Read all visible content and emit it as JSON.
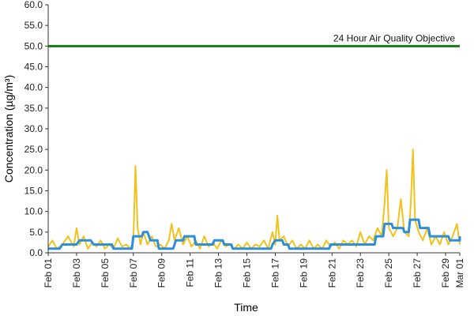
{
  "chart_data": {
    "type": "line",
    "title": "",
    "xlabel": "Time",
    "ylabel": "Concentration (µg/m³)",
    "ylim": [
      0,
      60
    ],
    "yticks": [
      "0.0",
      "5.0",
      "10.0",
      "15.0",
      "20.0",
      "25.0",
      "30.0",
      "35.0",
      "40.0",
      "45.0",
      "50.0",
      "55.0",
      "60.0"
    ],
    "xticks": [
      "Feb 01",
      "Feb 03",
      "Feb 05",
      "Feb 07",
      "Feb 09",
      "Feb 11",
      "Feb 13",
      "Feb 15",
      "Feb 17",
      "Feb 19",
      "Feb 21",
      "Feb 23",
      "Feb 25",
      "Feb 27",
      "Feb 29",
      "Mar 01"
    ],
    "x_day_range": [
      1,
      30
    ],
    "grid": false,
    "reference_line": {
      "label": "24 Hour Air Quality Objective",
      "value": 50,
      "color": "#1a7a1a"
    },
    "series": [
      {
        "color": "#f2c21b",
        "points": [
          [
            1,
            1.5
          ],
          [
            1.3,
            3
          ],
          [
            1.6,
            1
          ],
          [
            2,
            2
          ],
          [
            2.4,
            4
          ],
          [
            2.8,
            1.5
          ],
          [
            3,
            6
          ],
          [
            3.2,
            2
          ],
          [
            3.5,
            4
          ],
          [
            3.8,
            1
          ],
          [
            4.1,
            2.5
          ],
          [
            4.4,
            1.5
          ],
          [
            4.7,
            3
          ],
          [
            5,
            1
          ],
          [
            5.3,
            2
          ],
          [
            5.6,
            1
          ],
          [
            5.9,
            3.5
          ],
          [
            6.2,
            1.5
          ],
          [
            6.5,
            2
          ],
          [
            6.8,
            1
          ],
          [
            7,
            3
          ],
          [
            7.15,
            21
          ],
          [
            7.3,
            6
          ],
          [
            7.5,
            2
          ],
          [
            7.7,
            5
          ],
          [
            8,
            2
          ],
          [
            8.3,
            4
          ],
          [
            8.6,
            1.5
          ],
          [
            8.9,
            2
          ],
          [
            9.2,
            1
          ],
          [
            9.5,
            3
          ],
          [
            9.7,
            7
          ],
          [
            9.9,
            3
          ],
          [
            10.2,
            6
          ],
          [
            10.5,
            2
          ],
          [
            10.8,
            4
          ],
          [
            11.1,
            1.5
          ],
          [
            11.4,
            3
          ],
          [
            11.7,
            1
          ],
          [
            12,
            4
          ],
          [
            12.3,
            1.5
          ],
          [
            12.6,
            2.5
          ],
          [
            12.9,
            1
          ],
          [
            13.2,
            3
          ],
          [
            13.5,
            1.5
          ],
          [
            13.8,
            2
          ],
          [
            14.1,
            1
          ],
          [
            14.4,
            2
          ],
          [
            14.7,
            1
          ],
          [
            15,
            2.5
          ],
          [
            15.3,
            1
          ],
          [
            15.6,
            2
          ],
          [
            15.9,
            1.5
          ],
          [
            16.2,
            3
          ],
          [
            16.5,
            1
          ],
          [
            16.8,
            5
          ],
          [
            17,
            2
          ],
          [
            17.15,
            9
          ],
          [
            17.3,
            3
          ],
          [
            17.6,
            4
          ],
          [
            17.9,
            1.5
          ],
          [
            18.2,
            3
          ],
          [
            18.5,
            1
          ],
          [
            18.8,
            2
          ],
          [
            19.1,
            1
          ],
          [
            19.4,
            3
          ],
          [
            19.7,
            1
          ],
          [
            20,
            2
          ],
          [
            20.3,
            1
          ],
          [
            20.6,
            3
          ],
          [
            20.9,
            1.5
          ],
          [
            21.2,
            2.5
          ],
          [
            21.5,
            1
          ],
          [
            21.8,
            3
          ],
          [
            22.1,
            2
          ],
          [
            22.4,
            3
          ],
          [
            22.7,
            1.5
          ],
          [
            23,
            5
          ],
          [
            23.3,
            2
          ],
          [
            23.6,
            4
          ],
          [
            23.9,
            3
          ],
          [
            24.2,
            6
          ],
          [
            24.5,
            4
          ],
          [
            24.7,
            12
          ],
          [
            24.85,
            20
          ],
          [
            25,
            6
          ],
          [
            25.3,
            4
          ],
          [
            25.6,
            6
          ],
          [
            25.85,
            13
          ],
          [
            26.1,
            5
          ],
          [
            26.4,
            4
          ],
          [
            26.55,
            12
          ],
          [
            26.7,
            25
          ],
          [
            26.85,
            8
          ],
          [
            27.1,
            5
          ],
          [
            27.4,
            3
          ],
          [
            27.7,
            6
          ],
          [
            28,
            2
          ],
          [
            28.3,
            4
          ],
          [
            28.6,
            2
          ],
          [
            28.9,
            5
          ],
          [
            29.2,
            2
          ],
          [
            29.5,
            4
          ],
          [
            29.8,
            7
          ],
          [
            30,
            2
          ]
        ]
      },
      {
        "color": "#2b8fd9",
        "points": [
          [
            1,
            1
          ],
          [
            1.8,
            1
          ],
          [
            2,
            2
          ],
          [
            3,
            2
          ],
          [
            3.2,
            3
          ],
          [
            4,
            3
          ],
          [
            4.2,
            2
          ],
          [
            5.5,
            2
          ],
          [
            5.6,
            1
          ],
          [
            6.9,
            1
          ],
          [
            7,
            4
          ],
          [
            7.6,
            4
          ],
          [
            7.7,
            5
          ],
          [
            8,
            5
          ],
          [
            8.2,
            3
          ],
          [
            8.7,
            3
          ],
          [
            8.8,
            1
          ],
          [
            9.8,
            1
          ],
          [
            10,
            3
          ],
          [
            10.5,
            3
          ],
          [
            10.6,
            4
          ],
          [
            11.3,
            4
          ],
          [
            11.4,
            2
          ],
          [
            12.6,
            2
          ],
          [
            12.7,
            3
          ],
          [
            13.3,
            3
          ],
          [
            13.4,
            2
          ],
          [
            13.9,
            2
          ],
          [
            14,
            1
          ],
          [
            16.7,
            1
          ],
          [
            16.8,
            2
          ],
          [
            17,
            3
          ],
          [
            17.5,
            3
          ],
          [
            17.6,
            2
          ],
          [
            17.9,
            2
          ],
          [
            18,
            1
          ],
          [
            20.8,
            1
          ],
          [
            20.9,
            2
          ],
          [
            24,
            2
          ],
          [
            24.1,
            4
          ],
          [
            24.6,
            4
          ],
          [
            24.7,
            7
          ],
          [
            25.2,
            7
          ],
          [
            25.3,
            6
          ],
          [
            26,
            6
          ],
          [
            26.1,
            5
          ],
          [
            26.4,
            5
          ],
          [
            26.5,
            8
          ],
          [
            27.1,
            8
          ],
          [
            27.2,
            6
          ],
          [
            27.8,
            6
          ],
          [
            27.9,
            4
          ],
          [
            29.2,
            4
          ],
          [
            29.3,
            3
          ],
          [
            30,
            3
          ],
          [
            30,
            4
          ]
        ]
      }
    ]
  }
}
